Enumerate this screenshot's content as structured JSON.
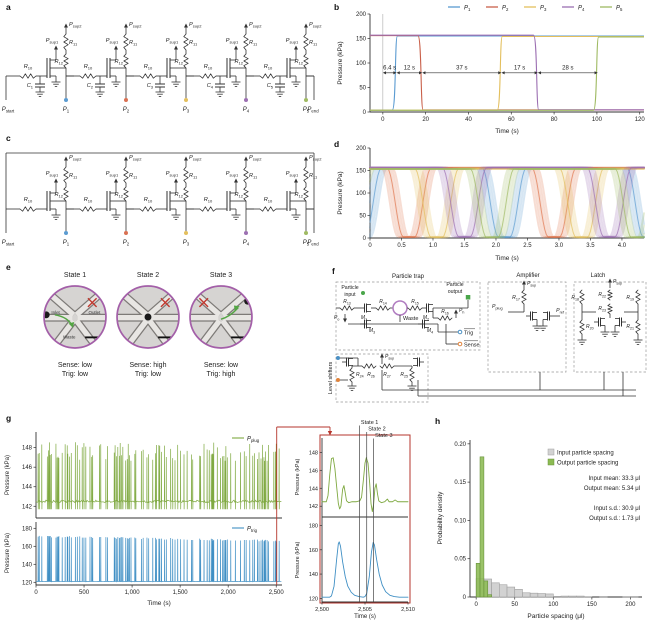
{
  "panels": {
    "a": {
      "letter": "a"
    },
    "b": {
      "letter": "b"
    },
    "c": {
      "letter": "c"
    },
    "d": {
      "letter": "d"
    },
    "e": {
      "letter": "e"
    },
    "f": {
      "letter": "f"
    },
    "g": {
      "letter": "g"
    },
    "h": {
      "letter": "h"
    }
  },
  "circuit_chain": {
    "supply1": {
      "m": "P",
      "s": "sup1"
    },
    "supply2": {
      "m": "P",
      "s": "sup2"
    },
    "r_series": {
      "m": "R",
      "s": "10"
    },
    "r_pullup": {
      "m": "R",
      "s": "11"
    },
    "r_feedback": {
      "m": "R",
      "s": "12"
    },
    "p_start": {
      "m": "P",
      "s": "start"
    },
    "p_end": {
      "m": "P",
      "s": "end"
    },
    "caps": [
      {
        "m": "C",
        "s": "1"
      },
      {
        "m": "C",
        "s": "2"
      },
      {
        "m": "C",
        "s": "3"
      },
      {
        "m": "C",
        "s": "4"
      },
      {
        "m": "C",
        "s": "5"
      }
    ],
    "outputs": [
      {
        "m": "P",
        "s": "1",
        "color": "#5b9bd1"
      },
      {
        "m": "P",
        "s": "2",
        "color": "#d97052"
      },
      {
        "m": "P",
        "s": "3",
        "color": "#e3bf5d"
      },
      {
        "m": "P",
        "s": "4",
        "color": "#9c6fb2"
      },
      {
        "m": "P",
        "s": "5",
        "color": "#9fba62"
      }
    ]
  },
  "e": {
    "border_color": "#a35fa8",
    "states": [
      {
        "title": "State 1",
        "caption1": "Sense: low",
        "caption2": "Trig: low",
        "labels": [
          "Inlet",
          "Outlet",
          "Waste"
        ],
        "particle": "inlet",
        "arrow": "to-waste",
        "cross": "outlet"
      },
      {
        "title": "State 2",
        "caption1": "Sense: high",
        "caption2": "Trig: low",
        "particle": "center",
        "cross": "outlet"
      },
      {
        "title": "State 3",
        "caption1": "Sense: low",
        "caption2": "Trig: high",
        "particle": "outlet",
        "arrow": "to-outlet",
        "cross": "inlet"
      }
    ]
  },
  "f": {
    "boxes": {
      "trap": "Particle trap",
      "amp": "Amplifier",
      "latch": "Latch",
      "shifters": "Level shifters"
    },
    "labels": {
      "particle_input_1": "Particle",
      "particle_input_2": "input",
      "particle_output_1": "Particle",
      "particle_output_2": "output",
      "waste": "Waste",
      "trig_bar": "Trig",
      "sense_bar": "Sense",
      "r13": {
        "m": "R",
        "s": "13"
      },
      "r14": {
        "m": "R",
        "s": "14"
      },
      "r15": {
        "m": "R",
        "s": "15"
      },
      "r16": {
        "m": "R",
        "s": "16"
      },
      "r17": {
        "m": "R",
        "s": "17"
      },
      "r18": {
        "m": "R",
        "s": "18"
      },
      "r19": {
        "m": "R",
        "s": "19"
      },
      "r20": {
        "m": "R",
        "s": "20"
      },
      "r21": {
        "m": "R",
        "s": "21"
      },
      "r22": {
        "m": "R",
        "s": "22"
      },
      "r23": {
        "m": "R",
        "s": "23"
      },
      "r24": {
        "m": "R",
        "s": "24"
      },
      "r25": {
        "m": "R",
        "s": "25"
      },
      "r26": {
        "m": "R",
        "s": "26"
      },
      "r27": {
        "m": "R",
        "s": "27"
      },
      "m1": {
        "m": "M",
        "s": "1"
      },
      "m2": {
        "m": "M",
        "s": "2"
      },
      "m3": {
        "m": "M",
        "s": "3"
      },
      "m4": {
        "m": "M",
        "s": "4"
      },
      "p_o": {
        "m": "P",
        "s": "o"
      },
      "p_h": {
        "m": "P",
        "s": "h"
      },
      "p_sup": {
        "m": "P",
        "s": "sup"
      },
      "p_plug": {
        "m": "P",
        "s": "plug"
      },
      "p_ref": {
        "m": "P",
        "s": "ref"
      }
    },
    "port_colors": {
      "particle": "#4aa64a",
      "trig": "#4a90c4",
      "sense": "#e0823a",
      "trap_circle": "#b07cc0"
    }
  },
  "chart_data": [
    {
      "id": "b",
      "type": "line",
      "xlabel": "Time (s)",
      "ylabel": "Pressure (kPa)",
      "xlim": [
        -6,
        122
      ],
      "ylim": [
        0,
        200
      ],
      "xticks": [
        0,
        20,
        40,
        60,
        80,
        100,
        120
      ],
      "yticks": [
        0,
        50,
        100,
        150,
        200
      ],
      "high_kpa": 155,
      "low_kpa": 4,
      "series": [
        {
          "name": {
            "m": "P",
            "s": "1"
          },
          "color": "#5b9bd1",
          "start_state": "low",
          "switch_time": 6.4
        },
        {
          "name": {
            "m": "P",
            "s": "2"
          },
          "color": "#c9604a",
          "start_state": "high",
          "switch_time": 18.4
        },
        {
          "name": {
            "m": "P",
            "s": "3"
          },
          "color": "#e3bf5d",
          "start_state": "low",
          "switch_time": 55.4
        },
        {
          "name": {
            "m": "P",
            "s": "4"
          },
          "color": "#9c6fb2",
          "start_state": "high",
          "switch_time": 72.4
        },
        {
          "name": {
            "m": "P",
            "s": "5"
          },
          "color": "#9fba62",
          "start_state": "low",
          "switch_time": 100.4
        }
      ],
      "interval_annotations": [
        {
          "text": "6.4 s",
          "from": 0,
          "to": 6.4
        },
        {
          "text": "12 s",
          "from": 6.4,
          "to": 18.4
        },
        {
          "text": "37 s",
          "from": 18.4,
          "to": 55.4
        },
        {
          "text": "17 s",
          "from": 55.4,
          "to": 72.4
        },
        {
          "text": "28 s",
          "from": 72.4,
          "to": 100.4
        }
      ],
      "annotation_y": 80
    },
    {
      "id": "d",
      "type": "line",
      "xlabel": "Time (s)",
      "ylabel": "Pressure (kPa)",
      "xlim": [
        0,
        4.35
      ],
      "ylim": [
        0,
        200
      ],
      "xticks": [
        0,
        0.5,
        1,
        1.5,
        2,
        2.5,
        3,
        3.5,
        4
      ],
      "xtick_labels": [
        "0",
        "0.5",
        "1.0",
        "1.5",
        "2.0",
        "2.5",
        "3.0",
        "3.5",
        "4.0"
      ],
      "yticks": [
        0,
        50,
        100,
        150,
        200
      ],
      "high_kpa": 155,
      "low_kpa": 2,
      "period_s": 2.3,
      "fall_s": 0.26,
      "flat_s": 0.18,
      "band_traces": 6,
      "band_jitter": 0.085,
      "series": [
        {
          "name": {
            "m": "P",
            "s": "1"
          },
          "color": "#5b9bd1",
          "first_dip": -0.17,
          "off": 0
        },
        {
          "name": {
            "m": "P",
            "s": "2"
          },
          "color": "#e0764f",
          "first_dip": 0.62,
          "off": 0.8
        },
        {
          "name": {
            "m": "P",
            "s": "3"
          },
          "color": "#e3bf5d",
          "first_dip": 1.06,
          "off": -0.8
        },
        {
          "name": {
            "m": "P",
            "s": "4"
          },
          "color": "#9c6fb2",
          "first_dip": 1.5,
          "off": 1.6
        },
        {
          "name": {
            "m": "P",
            "s": "5"
          },
          "color": "#9fba62",
          "first_dip": 1.94,
          "off": -1.6
        }
      ]
    },
    {
      "id": "g",
      "type": "line",
      "xlabel": "Time (s)",
      "ylabel": "Pressure (kPa)",
      "xlim": [
        0,
        2560
      ],
      "xticks": [
        0,
        500,
        1000,
        1500,
        2000,
        2500
      ],
      "xtick_labels": [
        "0",
        "500",
        "1,000",
        "1,500",
        "2,000",
        "2,500"
      ],
      "plug": {
        "legend": {
          "m": "P",
          "s": "plug"
        },
        "color": "#7fa941",
        "ylim": [
          140.8,
          149.6
        ],
        "yticks": [
          142,
          144,
          146,
          148
        ],
        "baseline": 142.5,
        "spike_high_min": 146.6,
        "spike_high_max": 148.6,
        "spike_low": 141.7
      },
      "trig": {
        "legend": {
          "m": "P",
          "s": "trig"
        },
        "color": "#3f8fc4",
        "ylim": [
          117,
          187
        ],
        "yticks": [
          120,
          140,
          160,
          180
        ],
        "baseline": 121,
        "spike_high_start": 172,
        "spike_high_end": 167
      },
      "n_events_approx": 112,
      "seed": 20,
      "inset": {
        "xlim": [
          2500,
          2510
        ],
        "xticks": [
          2500,
          2505,
          2510
        ],
        "xtick_labels": [
          "2,500",
          "2,505",
          "2,510"
        ],
        "xlabel": "Time (s)",
        "frame_color": "#b5362c",
        "states": [
          {
            "label": "State 1",
            "t": 2504.35
          },
          {
            "label": "State 2",
            "t": 2505.2
          },
          {
            "label": "State 3",
            "t": 2506.0
          }
        ],
        "plug_points": [
          [
            2500,
            142.5
          ],
          [
            2500.5,
            142.5
          ],
          [
            2500.7,
            143.2
          ],
          [
            2500.9,
            145.5
          ],
          [
            2501.1,
            147.3
          ],
          [
            2501.3,
            147.4
          ],
          [
            2501.5,
            146.2
          ],
          [
            2501.7,
            144.2
          ],
          [
            2501.9,
            142.3
          ],
          [
            2502.05,
            141.7
          ],
          [
            2502.2,
            142.0
          ],
          [
            2502.4,
            143.9
          ],
          [
            2502.55,
            144.3
          ],
          [
            2502.7,
            143.5
          ],
          [
            2502.85,
            142.6
          ],
          [
            2503.1,
            142.4
          ],
          [
            2503.5,
            142.5
          ],
          [
            2504.0,
            142.5
          ],
          [
            2504.4,
            142.6
          ],
          [
            2504.6,
            143.0
          ],
          [
            2504.8,
            144.8
          ],
          [
            2505.0,
            146.8
          ],
          [
            2505.15,
            147.4
          ],
          [
            2505.35,
            146.8
          ],
          [
            2505.55,
            144.5
          ],
          [
            2505.7,
            142.3
          ],
          [
            2505.85,
            141.4
          ],
          [
            2506.0,
            142.2
          ],
          [
            2506.15,
            144.0
          ],
          [
            2506.3,
            144.5
          ],
          [
            2506.45,
            143.4
          ],
          [
            2506.6,
            142.6
          ],
          [
            2506.9,
            142.4
          ],
          [
            2507.3,
            142.5
          ],
          [
            2507.6,
            142.8
          ],
          [
            2507.8,
            142.5
          ],
          [
            2508.2,
            142.5
          ],
          [
            2508.5,
            142.7
          ],
          [
            2508.8,
            142.5
          ],
          [
            2509.3,
            142.5
          ],
          [
            2510,
            142.5
          ]
        ],
        "trig_points": [
          [
            2500,
            121
          ],
          [
            2500.9,
            121
          ],
          [
            2501.1,
            122
          ],
          [
            2501.4,
            130
          ],
          [
            2501.7,
            152
          ],
          [
            2501.9,
            165
          ],
          [
            2502.0,
            166.5
          ],
          [
            2502.15,
            163
          ],
          [
            2502.4,
            150
          ],
          [
            2502.7,
            138
          ],
          [
            2503.0,
            130
          ],
          [
            2503.4,
            125
          ],
          [
            2503.8,
            122.5
          ],
          [
            2504.3,
            121.5
          ],
          [
            2504.8,
            121
          ],
          [
            2505.0,
            121.5
          ],
          [
            2505.2,
            124
          ],
          [
            2505.5,
            138
          ],
          [
            2505.75,
            158
          ],
          [
            2505.95,
            166
          ],
          [
            2506.1,
            164
          ],
          [
            2506.35,
            152
          ],
          [
            2506.65,
            140
          ],
          [
            2507.0,
            131
          ],
          [
            2507.4,
            125.5
          ],
          [
            2507.9,
            122.5
          ],
          [
            2508.4,
            121.5
          ],
          [
            2509.0,
            121
          ],
          [
            2510,
            121
          ]
        ]
      }
    },
    {
      "id": "h",
      "type": "histogram",
      "xlabel": "Particle spacing (μl)",
      "ylabel": "Probability density",
      "xlim": [
        -8,
        215
      ],
      "ylim": [
        0,
        0.205
      ],
      "xticks": [
        0,
        50,
        100,
        150,
        200
      ],
      "yticks": [
        0,
        0.05,
        0.1,
        0.15,
        0.2
      ],
      "ytick_labels": [
        "0",
        "0.05",
        "0.10",
        "0.15",
        "0.20"
      ],
      "series": [
        {
          "name": "Input particle spacing",
          "color": "#d2d2d2",
          "edge": "#9f9f9f",
          "bin_start": 0,
          "bin_width": 10,
          "values": [
            0.024,
            0.0235,
            0.0185,
            0.016,
            0.013,
            0.01,
            0.0055,
            0.005,
            0.0045,
            0.004,
            0.0008,
            0.0012,
            0.0012,
            0.0012,
            0.0004,
            0,
            0.0006,
            0,
            0,
            0.0005,
            0.0006
          ]
        },
        {
          "name": "Output particle spacing",
          "color": "#8cbb53",
          "edge": "#68913a",
          "bin_start": 0,
          "bin_width": 5,
          "values": [
            0.044,
            0.183,
            0.021,
            0.003
          ]
        }
      ],
      "stats": [
        "Input mean: 33.3 μl",
        "Output mean: 5.34 μl",
        "",
        "Input s.d.: 30.9 μl",
        "Output s.d.: 1.73 μl"
      ]
    }
  ]
}
